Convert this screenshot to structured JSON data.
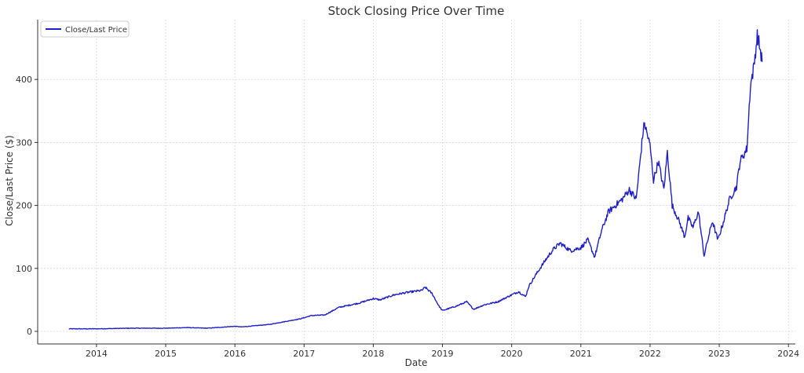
{
  "chart_data": {
    "type": "line",
    "title": "Stock Closing Price Over Time",
    "xlabel": "Date",
    "ylabel": "Close/Last Price ($)",
    "xlim": [
      2013.15,
      2024.1
    ],
    "ylim": [
      -20,
      495
    ],
    "grid": true,
    "legend_position": "top-left",
    "x_ticks": [
      2014,
      2015,
      2016,
      2017,
      2018,
      2019,
      2020,
      2021,
      2022,
      2023,
      2024
    ],
    "x_tick_labels": [
      "2014",
      "2015",
      "2016",
      "2017",
      "2018",
      "2019",
      "2020",
      "2021",
      "2022",
      "2023",
      "2024"
    ],
    "y_ticks": [
      0,
      100,
      200,
      300,
      400
    ],
    "y_tick_labels": [
      "0",
      "100",
      "200",
      "300",
      "400"
    ],
    "colors": {
      "series": "#1f1fc8",
      "grid": "#d0d0d0",
      "axis": "#333333"
    },
    "series": [
      {
        "name": "Close/Last Price",
        "x": [
          2013.6,
          2014.0,
          2014.5,
          2015.0,
          2015.3,
          2015.6,
          2016.0,
          2016.1,
          2016.5,
          2016.8,
          2016.95,
          2017.1,
          2017.3,
          2017.5,
          2017.8,
          2018.0,
          2018.1,
          2018.3,
          2018.5,
          2018.7,
          2018.75,
          2018.85,
          2018.95,
          2019.0,
          2019.2,
          2019.35,
          2019.45,
          2019.6,
          2019.8,
          2020.0,
          2020.1,
          2020.2,
          2020.25,
          2020.35,
          2020.5,
          2020.6,
          2020.7,
          2020.85,
          2021.0,
          2021.1,
          2021.2,
          2021.3,
          2021.4,
          2021.5,
          2021.6,
          2021.7,
          2021.8,
          2021.9,
          2021.92,
          2022.0,
          2022.05,
          2022.12,
          2022.2,
          2022.25,
          2022.32,
          2022.42,
          2022.5,
          2022.55,
          2022.62,
          2022.7,
          2022.78,
          2022.9,
          2022.98,
          2023.05,
          2023.15,
          2023.25,
          2023.3,
          2023.35,
          2023.4,
          2023.45,
          2023.5,
          2023.55,
          2023.58,
          2023.62
        ],
        "y": [
          4,
          4,
          5,
          5,
          6,
          5,
          8,
          7,
          11,
          17,
          20,
          25,
          26,
          38,
          45,
          52,
          50,
          58,
          62,
          65,
          70,
          60,
          40,
          33,
          40,
          47,
          35,
          42,
          47,
          58,
          63,
          55,
          72,
          90,
          115,
          130,
          140,
          128,
          133,
          145,
          118,
          160,
          190,
          200,
          210,
          225,
          210,
          318,
          330,
          295,
          240,
          270,
          225,
          285,
          200,
          175,
          150,
          180,
          165,
          190,
          120,
          175,
          145,
          170,
          210,
          230,
          270,
          280,
          290,
          390,
          420,
          470,
          455,
          428
        ]
      }
    ]
  }
}
